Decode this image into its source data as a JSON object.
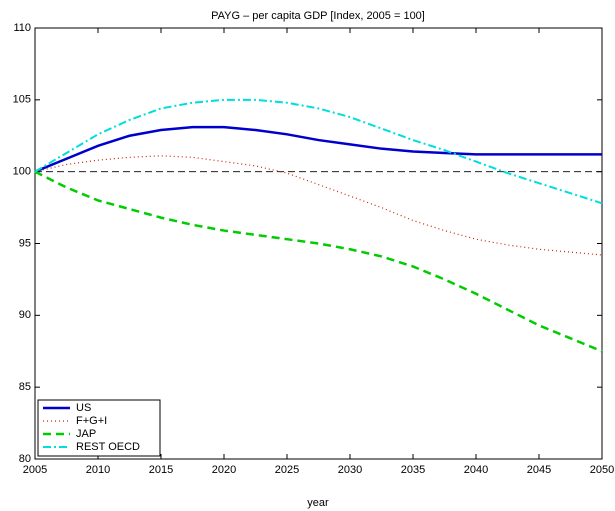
{
  "chart_data": {
    "type": "line",
    "title": "PAYG – per capita GDP [Index, 2005 = 100]",
    "x_label": "year",
    "x": [
      2005,
      2007.5,
      2010,
      2012.5,
      2015,
      2017.5,
      2020,
      2022.5,
      2025,
      2027.5,
      2030,
      2032.5,
      2035,
      2037.5,
      2040,
      2042.5,
      2045,
      2047.5,
      2050
    ],
    "series": [
      {
        "name": "US",
        "color": "#0000cc",
        "dash": "solid",
        "values": [
          100,
          100.9,
          101.8,
          102.5,
          102.9,
          103.1,
          103.1,
          102.9,
          102.6,
          102.2,
          101.9,
          101.6,
          101.4,
          101.3,
          101.2,
          101.2,
          101.2,
          101.2,
          101.2
        ]
      },
      {
        "name": "F+G+I",
        "color": "#cc2200",
        "dash": "dotted",
        "values": [
          100,
          100.5,
          100.8,
          101.0,
          101.1,
          101.0,
          100.7,
          100.4,
          99.9,
          99.1,
          98.3,
          97.5,
          96.6,
          95.9,
          95.3,
          94.9,
          94.6,
          94.4,
          94.2
        ]
      },
      {
        "name": "JAP",
        "color": "#00cc00",
        "dash": "dashed",
        "values": [
          100,
          98.9,
          98.0,
          97.4,
          96.8,
          96.3,
          95.9,
          95.6,
          95.3,
          95.0,
          94.6,
          94.1,
          93.4,
          92.5,
          91.5,
          90.4,
          89.3,
          88.4,
          87.5
        ]
      },
      {
        "name": "REST OECD",
        "color": "#00dddd",
        "dash": "dashdot",
        "values": [
          100,
          101.3,
          102.6,
          103.6,
          104.4,
          104.8,
          105.0,
          105.0,
          104.8,
          104.4,
          103.8,
          103.0,
          102.2,
          101.5,
          100.7,
          99.9,
          99.2,
          98.5,
          97.8
        ]
      }
    ],
    "reference_line": 100,
    "xlim": [
      2005,
      2050
    ],
    "xticks": [
      2005,
      2010,
      2015,
      2020,
      2025,
      2030,
      2035,
      2040,
      2045,
      2050
    ],
    "ylim": [
      80,
      110
    ],
    "yticks": [
      80,
      85,
      90,
      95,
      100,
      105,
      110
    ],
    "legend": "lower left"
  }
}
